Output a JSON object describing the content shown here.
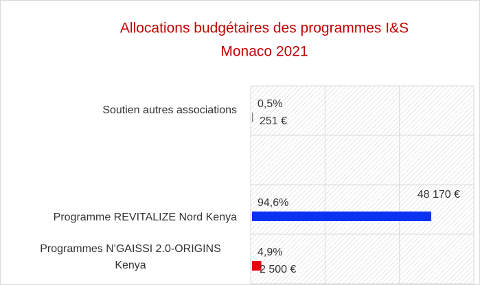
{
  "chart_data": {
    "type": "bar",
    "orientation": "horizontal",
    "title": [
      "Allocations budgétaires des programmes I&S",
      "Monaco 2021"
    ],
    "categories": [
      [
        "Soutien autres associations"
      ],
      null,
      [
        "Programme REVITALIZE Nord Kenya"
      ],
      [
        "Programmes N'GAISSI 2.0-ORIGINS",
        "Kenya"
      ]
    ],
    "values": [
      251,
      null,
      48170,
      2500
    ],
    "value_labels": [
      "251 €",
      null,
      "48 170 €",
      "2 500 €"
    ],
    "share_labels": [
      "0,5%",
      null,
      "94,6%",
      "4,9%"
    ],
    "colors": [
      "#7f7f7f",
      null,
      "#0b32f0",
      "#e8000b"
    ],
    "xlim": [
      0,
      60000
    ],
    "xticks": [
      0,
      20000,
      40000,
      60000
    ],
    "grid": true
  }
}
